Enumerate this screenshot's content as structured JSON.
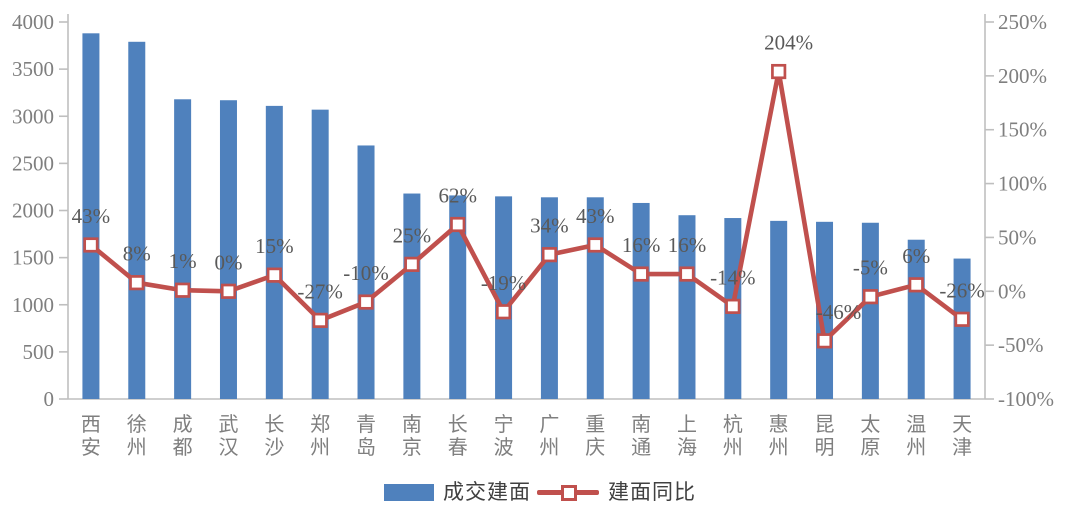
{
  "chart_data": {
    "type": "bar",
    "subtype": "bar-line-combo",
    "categories": [
      "西安",
      "徐州",
      "成都",
      "武汉",
      "长沙",
      "郑州",
      "青岛",
      "南京",
      "长春",
      "宁波",
      "广州",
      "重庆",
      "南通",
      "上海",
      "杭州",
      "惠州",
      "昆明",
      "太原",
      "温州",
      "天津"
    ],
    "series": [
      {
        "name": "成交建面",
        "type": "bar",
        "axis": "left",
        "color": "#4F81BD",
        "values": [
          3880,
          3790,
          3180,
          3170,
          3110,
          3070,
          2690,
          2180,
          2160,
          2150,
          2140,
          2140,
          2080,
          1950,
          1920,
          1890,
          1880,
          1870,
          1690,
          1490
        ]
      },
      {
        "name": "建面同比",
        "type": "line",
        "axis": "right",
        "color": "#C0504D",
        "marker": "open-square",
        "values": [
          43,
          8,
          1,
          0,
          15,
          -27,
          -10,
          25,
          62,
          -19,
          34,
          43,
          16,
          16,
          -14,
          204,
          -46,
          -5,
          6,
          -26
        ],
        "point_labels": [
          "43%",
          "8%",
          "1%",
          "0%",
          "15%",
          "-27%",
          "-10%",
          "25%",
          "62%",
          "-19%",
          "34%",
          "43%",
          "16%",
          "16%",
          "-14%",
          "204%",
          "-46%",
          "-5%",
          "6%",
          "-26%"
        ]
      }
    ],
    "left_axis": {
      "min": 0,
      "max": 4000,
      "step": 500,
      "tick_labels": [
        "4000",
        "3500",
        "3000",
        "2500",
        "2000",
        "1500",
        "1000",
        "500",
        "0"
      ]
    },
    "right_axis": {
      "min": -100,
      "max": 250,
      "step": 50,
      "tick_labels": [
        "250%",
        "200%",
        "150%",
        "100%",
        "50%",
        "0%",
        "-50%",
        "-100%"
      ]
    },
    "grid": false,
    "legend_position": "bottom",
    "legend": [
      {
        "label": "成交建面",
        "swatch": "bar"
      },
      {
        "label": "建面同比",
        "swatch": "line-marker"
      }
    ]
  },
  "colors": {
    "bar": "#4F81BD",
    "line": "#C0504D",
    "marker_fill": "#FFFFFF",
    "axis_line": "#BFBFBF",
    "axis_tick_text": "#7F7F7F",
    "category_text": "#7F7F7F",
    "point_label_text": "#595959",
    "legend_text": "#404040",
    "background": "#FFFFFF"
  }
}
